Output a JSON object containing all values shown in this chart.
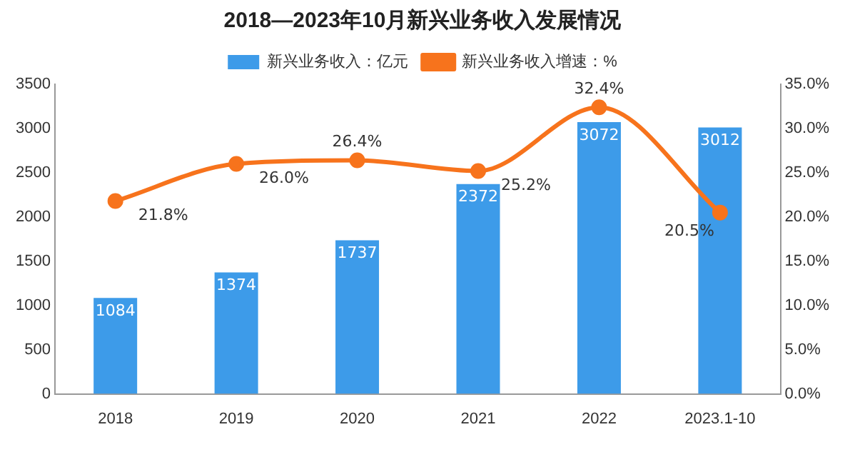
{
  "chart_data": {
    "type": "bar",
    "title": "2018—2023年10月新兴业务收入发展情况",
    "categories": [
      "2018",
      "2019",
      "2020",
      "2021",
      "2022",
      "2023.1-10"
    ],
    "series": [
      {
        "name": "新兴业务收入：亿元",
        "color": "#3d9be9",
        "values": [
          1084,
          1374,
          1737,
          2372,
          3072,
          3012
        ],
        "value_labels": [
          "1084",
          "1374",
          "1737",
          "2372",
          "3072",
          "3012"
        ]
      },
      {
        "name": "新兴业务收入增速：%",
        "type": "line",
        "axis": "y2",
        "color": "#f7731c",
        "values": [
          21.8,
          26.0,
          26.4,
          25.2,
          32.4,
          20.5
        ],
        "value_labels": [
          "21.8%",
          "26.0%",
          "26.4%",
          "25.2%",
          "32.4%",
          "20.5%"
        ]
      }
    ],
    "ylim": [
      0,
      3500
    ],
    "yticks": [
      0,
      500,
      1000,
      1500,
      2000,
      2500,
      3000,
      3500
    ],
    "y2lim": [
      0,
      35
    ],
    "y2ticks": [
      {
        "value": 0,
        "label": "0.0%"
      },
      {
        "value": 5,
        "label": "5.0%"
      },
      {
        "value": 10,
        "label": "10.0%"
      },
      {
        "value": 15,
        "label": "15.0%"
      },
      {
        "value": 20,
        "label": "20.0%"
      },
      {
        "value": 25,
        "label": "25.0%"
      },
      {
        "value": 30,
        "label": "30.0%"
      },
      {
        "value": 35,
        "label": "35.0%"
      }
    ],
    "legend": "top",
    "marker": "circle",
    "grid": false
  }
}
